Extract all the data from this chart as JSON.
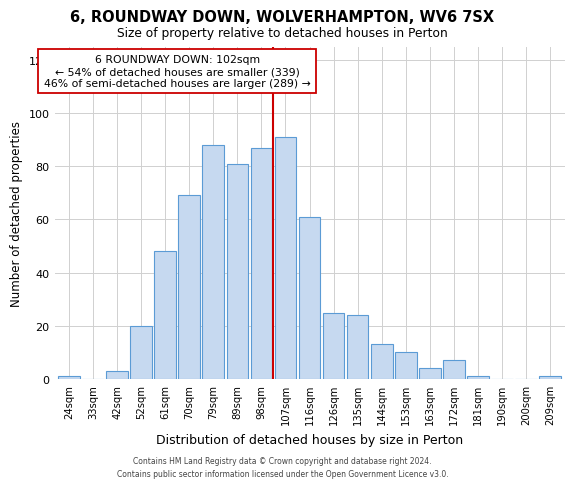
{
  "title": "6, ROUNDWAY DOWN, WOLVERHAMPTON, WV6 7SX",
  "subtitle": "Size of property relative to detached houses in Perton",
  "xlabel": "Distribution of detached houses by size in Perton",
  "ylabel": "Number of detached properties",
  "bar_labels": [
    "24sqm",
    "33sqm",
    "42sqm",
    "52sqm",
    "61sqm",
    "70sqm",
    "79sqm",
    "89sqm",
    "98sqm",
    "107sqm",
    "116sqm",
    "126sqm",
    "135sqm",
    "144sqm",
    "153sqm",
    "163sqm",
    "172sqm",
    "181sqm",
    "190sqm",
    "200sqm",
    "209sqm"
  ],
  "bar_values": [
    1,
    0,
    3,
    20,
    48,
    69,
    88,
    81,
    87,
    91,
    61,
    25,
    24,
    13,
    10,
    4,
    7,
    1,
    0,
    0,
    1
  ],
  "bar_color": "#c6d9f0",
  "bar_edge_color": "#5b9bd5",
  "vline_x": 8.5,
  "vline_color": "#cc0000",
  "annotation_title": "6 ROUNDWAY DOWN: 102sqm",
  "annotation_line1": "← 54% of detached houses are smaller (339)",
  "annotation_line2": "46% of semi-detached houses are larger (289) →",
  "annotation_box_color": "#ffffff",
  "annotation_box_edge": "#cc0000",
  "ylim": [
    0,
    125
  ],
  "yticks": [
    0,
    20,
    40,
    60,
    80,
    100,
    120
  ],
  "footer1": "Contains HM Land Registry data © Crown copyright and database right 2024.",
  "footer2": "Contains public sector information licensed under the Open Government Licence v3.0.",
  "bg_color": "#ffffff",
  "grid_color": "#d0d0d0"
}
